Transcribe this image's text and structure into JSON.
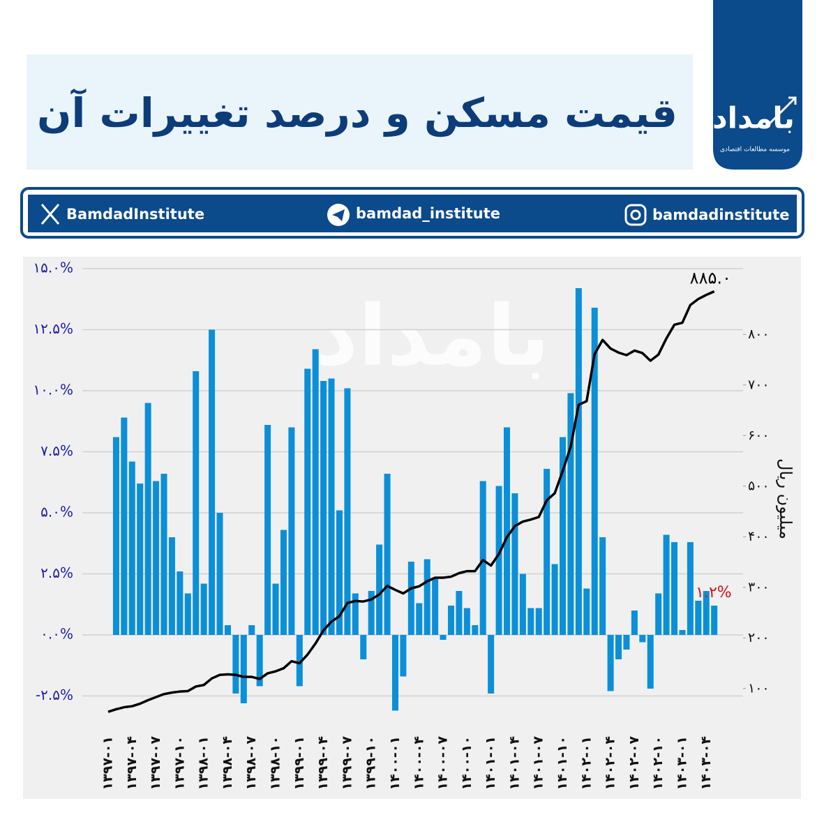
{
  "header": {
    "title": "قیمت مسکن و درصد تغییرات آن",
    "logo": "بامداد",
    "logo_subtitle": "موسسه مطالعات اقتصادی"
  },
  "social": {
    "x": "BamdadInstitute",
    "telegram": "bamdad_institute",
    "instagram": "bamdadinstitute"
  },
  "chart_data": {
    "type": "combo",
    "watermark": "بامداد",
    "y2label": "میلیون ریال",
    "categories": [
      "۱۳۹۷-۰۱",
      null,
      null,
      "۱۳۹۷-۰۴",
      null,
      null,
      "۱۳۹۷-۰۷",
      null,
      null,
      "۱۳۹۷-۱۰",
      null,
      null,
      "۱۳۹۸-۰۱",
      null,
      null,
      "۱۳۹۸-۰۴",
      null,
      null,
      "۱۳۹۸-۰۷",
      null,
      null,
      "۱۳۹۸-۱۰",
      null,
      null,
      "۱۳۹۹-۰۱",
      null,
      null,
      "۱۳۹۹-۰۴",
      null,
      null,
      "۱۳۹۹-۰۷",
      null,
      null,
      "۱۳۹۹-۱۰",
      null,
      null,
      "۱۴۰۰-۰۱",
      null,
      null,
      "۱۴۰۰-۰۴",
      null,
      null,
      "۱۴۰۰-۰۷",
      null,
      null,
      "۱۴۰۰-۱۰",
      null,
      null,
      "۱۴۰۱-۰۱",
      null,
      null,
      "۱۴۰۱-۰۴",
      null,
      null,
      "۱۴۰۱-۰۷",
      null,
      null,
      "۱۴۰۱-۱۰",
      null,
      null,
      "۱۴۰۲-۰۱",
      null,
      null,
      "۱۴۰۲-۰۴",
      null,
      null,
      "۱۴۰۲-۰۷",
      null,
      null,
      "۱۴۰۲-۱۰",
      null,
      null,
      "۱۴۰۳-۰۱",
      null,
      null,
      "۱۴۰۳-۰۴",
      null
    ],
    "series": [
      {
        "type": "bar",
        "color": "#0b8fd8",
        "axis": "y",
        "values": [
          null,
          8.1,
          8.9,
          7.1,
          6.2,
          9.5,
          6.3,
          6.6,
          4.0,
          2.6,
          1.7,
          10.8,
          2.1,
          12.5,
          5.0,
          0.4,
          -2.4,
          -2.8,
          0.4,
          -2.1,
          8.6,
          2.1,
          4.3,
          8.5,
          -2.1,
          10.9,
          11.7,
          10.4,
          10.5,
          5.1,
          10.1,
          1.7,
          -1.0,
          1.8,
          3.7,
          6.6,
          -3.1,
          -1.7,
          3.0,
          1.3,
          3.1,
          2.3,
          -0.2,
          1.2,
          1.8,
          1.1,
          0.4,
          6.3,
          -2.4,
          6.1,
          8.5,
          5.8,
          2.5,
          1.1,
          1.1,
          6.8,
          2.9,
          8.1,
          9.9,
          14.2,
          1.9,
          13.4,
          4.0,
          -2.3,
          -1.0,
          -0.6,
          1.0,
          -0.3,
          -2.2,
          1.7,
          4.1,
          3.8,
          0.2,
          3.8,
          1.4,
          1.8,
          1.2
        ],
        "value_labels": [
          null,
          null,
          null,
          null,
          null,
          null,
          null,
          null,
          null,
          null,
          null,
          null,
          null,
          null,
          null,
          null,
          null,
          null,
          null,
          null,
          null,
          null,
          null,
          null,
          null,
          null,
          null,
          null,
          null,
          null,
          null,
          null,
          null,
          null,
          null,
          null,
          null,
          null,
          null,
          null,
          null,
          null,
          null,
          null,
          null,
          null,
          null,
          null,
          null,
          null,
          null,
          null,
          null,
          null,
          null,
          null,
          null,
          null,
          null,
          null,
          null,
          null,
          null,
          null,
          null,
          null,
          null,
          null,
          null,
          null,
          null,
          null,
          null,
          null,
          null,
          null,
          "۱.۲%"
        ],
        "label_color": "#d0111b"
      },
      {
        "type": "line",
        "color": "#000000",
        "axis": "y2",
        "values": [
          54,
          59,
          63,
          65,
          70,
          77,
          83,
          89,
          92,
          94,
          95,
          104,
          107,
          120,
          127,
          128,
          127,
          123,
          123,
          119,
          130,
          134,
          140,
          154,
          150,
          167,
          189,
          215,
          232,
          243,
          269,
          273,
          272,
          276,
          286,
          303,
          295,
          288,
          298,
          302,
          312,
          319,
          319,
          321,
          328,
          332,
          332,
          354,
          343,
          366,
          399,
          421,
          430,
          434,
          439,
          472,
          486,
          530,
          578,
          661,
          668,
          761,
          789,
          772,
          764,
          759,
          768,
          763,
          748,
          760,
          792,
          819,
          823,
          858,
          870,
          878,
          885
        ],
        "value_labels": [
          null,
          null,
          null,
          null,
          null,
          null,
          null,
          null,
          null,
          null,
          null,
          null,
          null,
          null,
          null,
          null,
          null,
          null,
          null,
          null,
          null,
          null,
          null,
          null,
          null,
          null,
          null,
          null,
          null,
          null,
          null,
          null,
          null,
          null,
          null,
          null,
          null,
          null,
          null,
          null,
          null,
          null,
          null,
          null,
          null,
          null,
          null,
          null,
          null,
          null,
          null,
          null,
          null,
          null,
          null,
          null,
          null,
          null,
          null,
          null,
          null,
          null,
          null,
          null,
          null,
          null,
          null,
          null,
          null,
          null,
          null,
          null,
          null,
          null,
          null,
          null,
          "۸۸۵.۰"
        ],
        "label_color": "#000000"
      }
    ],
    "ylim": [
      -3.5,
      15
    ],
    "yticks": [
      {
        "value": -2.5,
        "label": "-۲.۵%"
      },
      {
        "value": 0,
        "label": "۰.۰%"
      },
      {
        "value": 2.5,
        "label": "۲.۵%"
      },
      {
        "value": 5,
        "label": "۵.۰%"
      },
      {
        "value": 7.5,
        "label": "۷.۵%"
      },
      {
        "value": 10,
        "label": "۱۰.۰%"
      },
      {
        "value": 12.5,
        "label": "۱۲.۵%"
      },
      {
        "value": 15,
        "label": "۱۵.۰%"
      }
    ],
    "y2lim": [
      37,
      930
    ],
    "y2ticks": [
      {
        "value": 100,
        "label": "۱۰۰"
      },
      {
        "value": 200,
        "label": "۲۰۰"
      },
      {
        "value": 300,
        "label": "۳۰۰"
      },
      {
        "value": 400,
        "label": "۴۰۰"
      },
      {
        "value": 500,
        "label": "۵۰۰"
      },
      {
        "value": 600,
        "label": "۶۰۰"
      },
      {
        "value": 700,
        "label": "۷۰۰"
      },
      {
        "value": 800,
        "label": "۸۰۰"
      }
    ],
    "grid": true,
    "ytick_color": "#1c1ca8"
  }
}
